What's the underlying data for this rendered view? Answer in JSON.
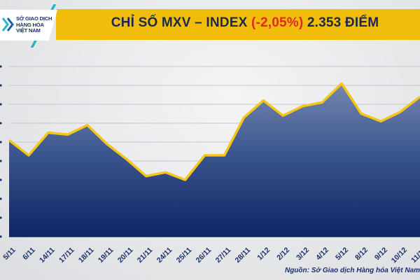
{
  "header": {
    "logo": {
      "icon": "chevron-logo-icon",
      "lines": [
        "SỞ GIAO DỊCH",
        "HÀNG HÓA",
        "VIỆT NAM"
      ]
    },
    "title_prefix": "CHỈ SỐ MXV – INDEX ",
    "title_change": "(-2,05%)",
    "title_suffix": " 2.353 ĐIỂM",
    "colors": {
      "banner": "#f2bd0a",
      "change": "#e02a1d",
      "text": "#1b2a4a"
    }
  },
  "source": "Nguồn: Sở Giao dịch Hàng hóa Việt Nam",
  "chart_data": {
    "type": "area",
    "title": "CHỈ SỐ MXV – INDEX (-2,05%) 2.353 ĐIỂM",
    "xlabel": "",
    "ylabel": "",
    "y_tick_labels_visible": false,
    "y_units_note": "relative gridline units (0 = chart bottom, 1 unit per gridline); axis labels cropped in source",
    "ylim": [
      0,
      9
    ],
    "grid": true,
    "legend": "none",
    "categories": [
      "5/11",
      "6/11",
      "14/11",
      "17/11",
      "18/11",
      "19/11",
      "20/11",
      "21/11",
      "24/11",
      "25/11",
      "26/11",
      "27/11",
      "28/11",
      "1/12",
      "2/12",
      "3/12",
      "4/12",
      "5/12",
      "8/12",
      "9/12",
      "10/12",
      "11/12"
    ],
    "series": [
      {
        "name": "MXV-Index",
        "color": "#f5c518",
        "fill": "#1f3a78",
        "values": [
          5.1,
          4.3,
          5.5,
          5.4,
          5.9,
          4.9,
          4.1,
          3.2,
          3.4,
          3.0,
          4.3,
          4.3,
          6.3,
          7.2,
          6.4,
          6.9,
          7.1,
          8.1,
          6.5,
          6.1,
          6.6,
          7.4
        ]
      }
    ]
  }
}
